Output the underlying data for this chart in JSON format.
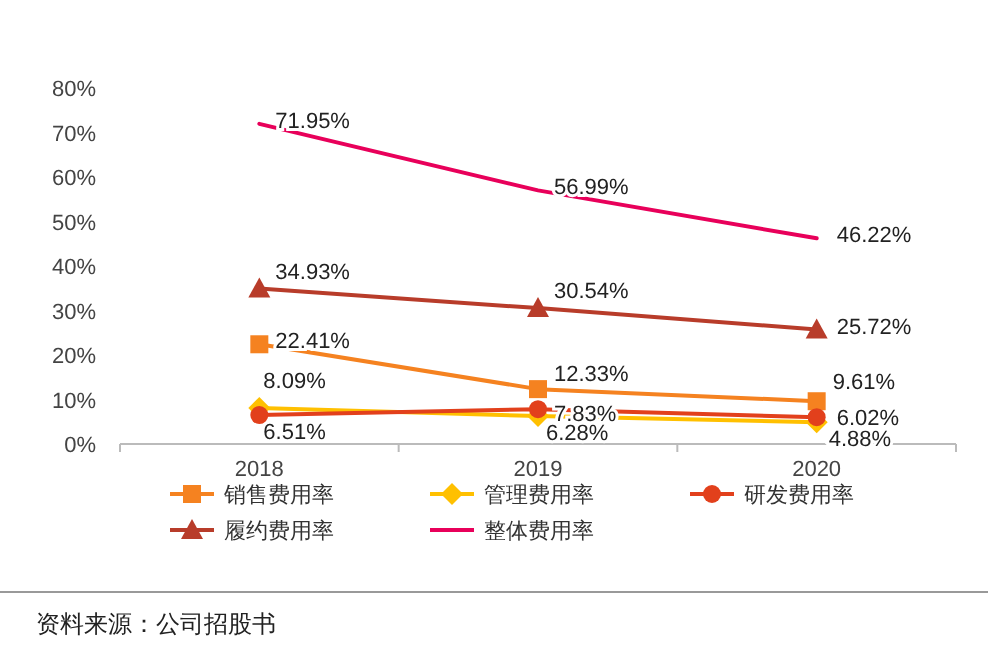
{
  "chart_data": {
    "type": "line",
    "categories": [
      "2018",
      "2019",
      "2020"
    ],
    "series": [
      {
        "name": "销售费用率",
        "color": "#f58220",
        "marker": "square",
        "values": [
          22.41,
          12.33,
          9.61
        ],
        "value_labels": [
          "22.41%",
          "12.33%",
          "9.61%"
        ]
      },
      {
        "name": "管理费用率",
        "color": "#ffc000",
        "marker": "diamond",
        "values": [
          8.09,
          6.28,
          4.88
        ],
        "value_labels": [
          "8.09%",
          "6.28%",
          "4.88%"
        ]
      },
      {
        "name": "研发费用率",
        "color": "#e2401c",
        "marker": "circle",
        "values": [
          6.51,
          7.83,
          6.02
        ],
        "value_labels": [
          "6.51%",
          "7.83%",
          "6.02%"
        ]
      },
      {
        "name": "履约费用率",
        "color": "#b83c2a",
        "marker": "triangle",
        "values": [
          34.93,
          30.54,
          25.72
        ],
        "value_labels": [
          "34.93%",
          "30.54%",
          "25.72%"
        ]
      },
      {
        "name": "整体费用率",
        "color": "#e8005a",
        "marker": "none",
        "values": [
          71.95,
          56.99,
          46.22
        ],
        "value_labels": [
          "71.95%",
          "56.99%",
          "46.22%"
        ]
      }
    ],
    "ylim": [
      0,
      80
    ],
    "yticks": [
      {
        "value": 0,
        "label": "0%"
      },
      {
        "value": 10,
        "label": "10%"
      },
      {
        "value": 20,
        "label": "20%"
      },
      {
        "value": 30,
        "label": "30%"
      },
      {
        "value": 40,
        "label": "40%"
      },
      {
        "value": 50,
        "label": "50%"
      },
      {
        "value": 60,
        "label": "60%"
      },
      {
        "value": 70,
        "label": "70%"
      },
      {
        "value": 80,
        "label": "80%"
      }
    ],
    "grid": false,
    "legend": "bottom",
    "annotations": [
      "资料来源：公司招股书"
    ]
  }
}
